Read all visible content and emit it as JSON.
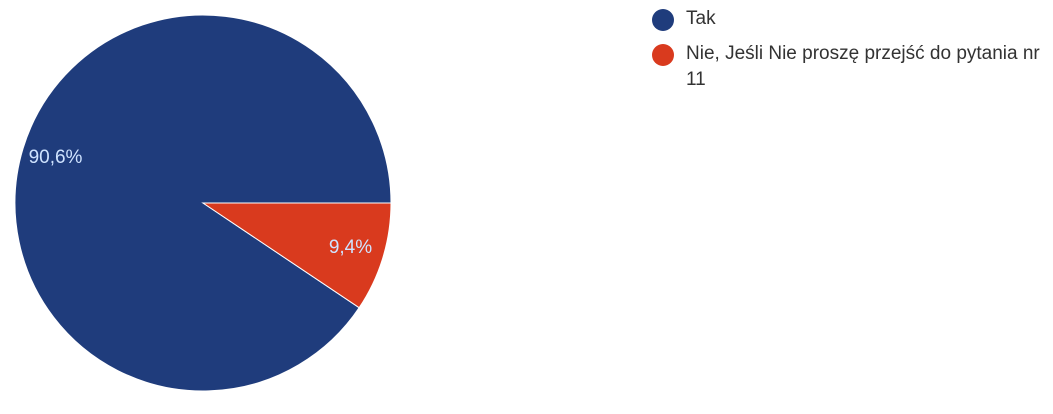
{
  "chart_data": {
    "type": "pie",
    "slices": [
      {
        "label": "Tak",
        "value": 90.6,
        "display": "90,6%",
        "color": "#1f3c7c"
      },
      {
        "label": "Nie, Jeśli Nie proszę przejść do pytania nr 11",
        "value": 9.4,
        "display": "9,4%",
        "color": "#d93a1e"
      }
    ],
    "legend": {
      "placement": "right"
    },
    "label_color": "#cfe3ff",
    "start_angle_deg": 0,
    "direction": "counterclockwise"
  }
}
